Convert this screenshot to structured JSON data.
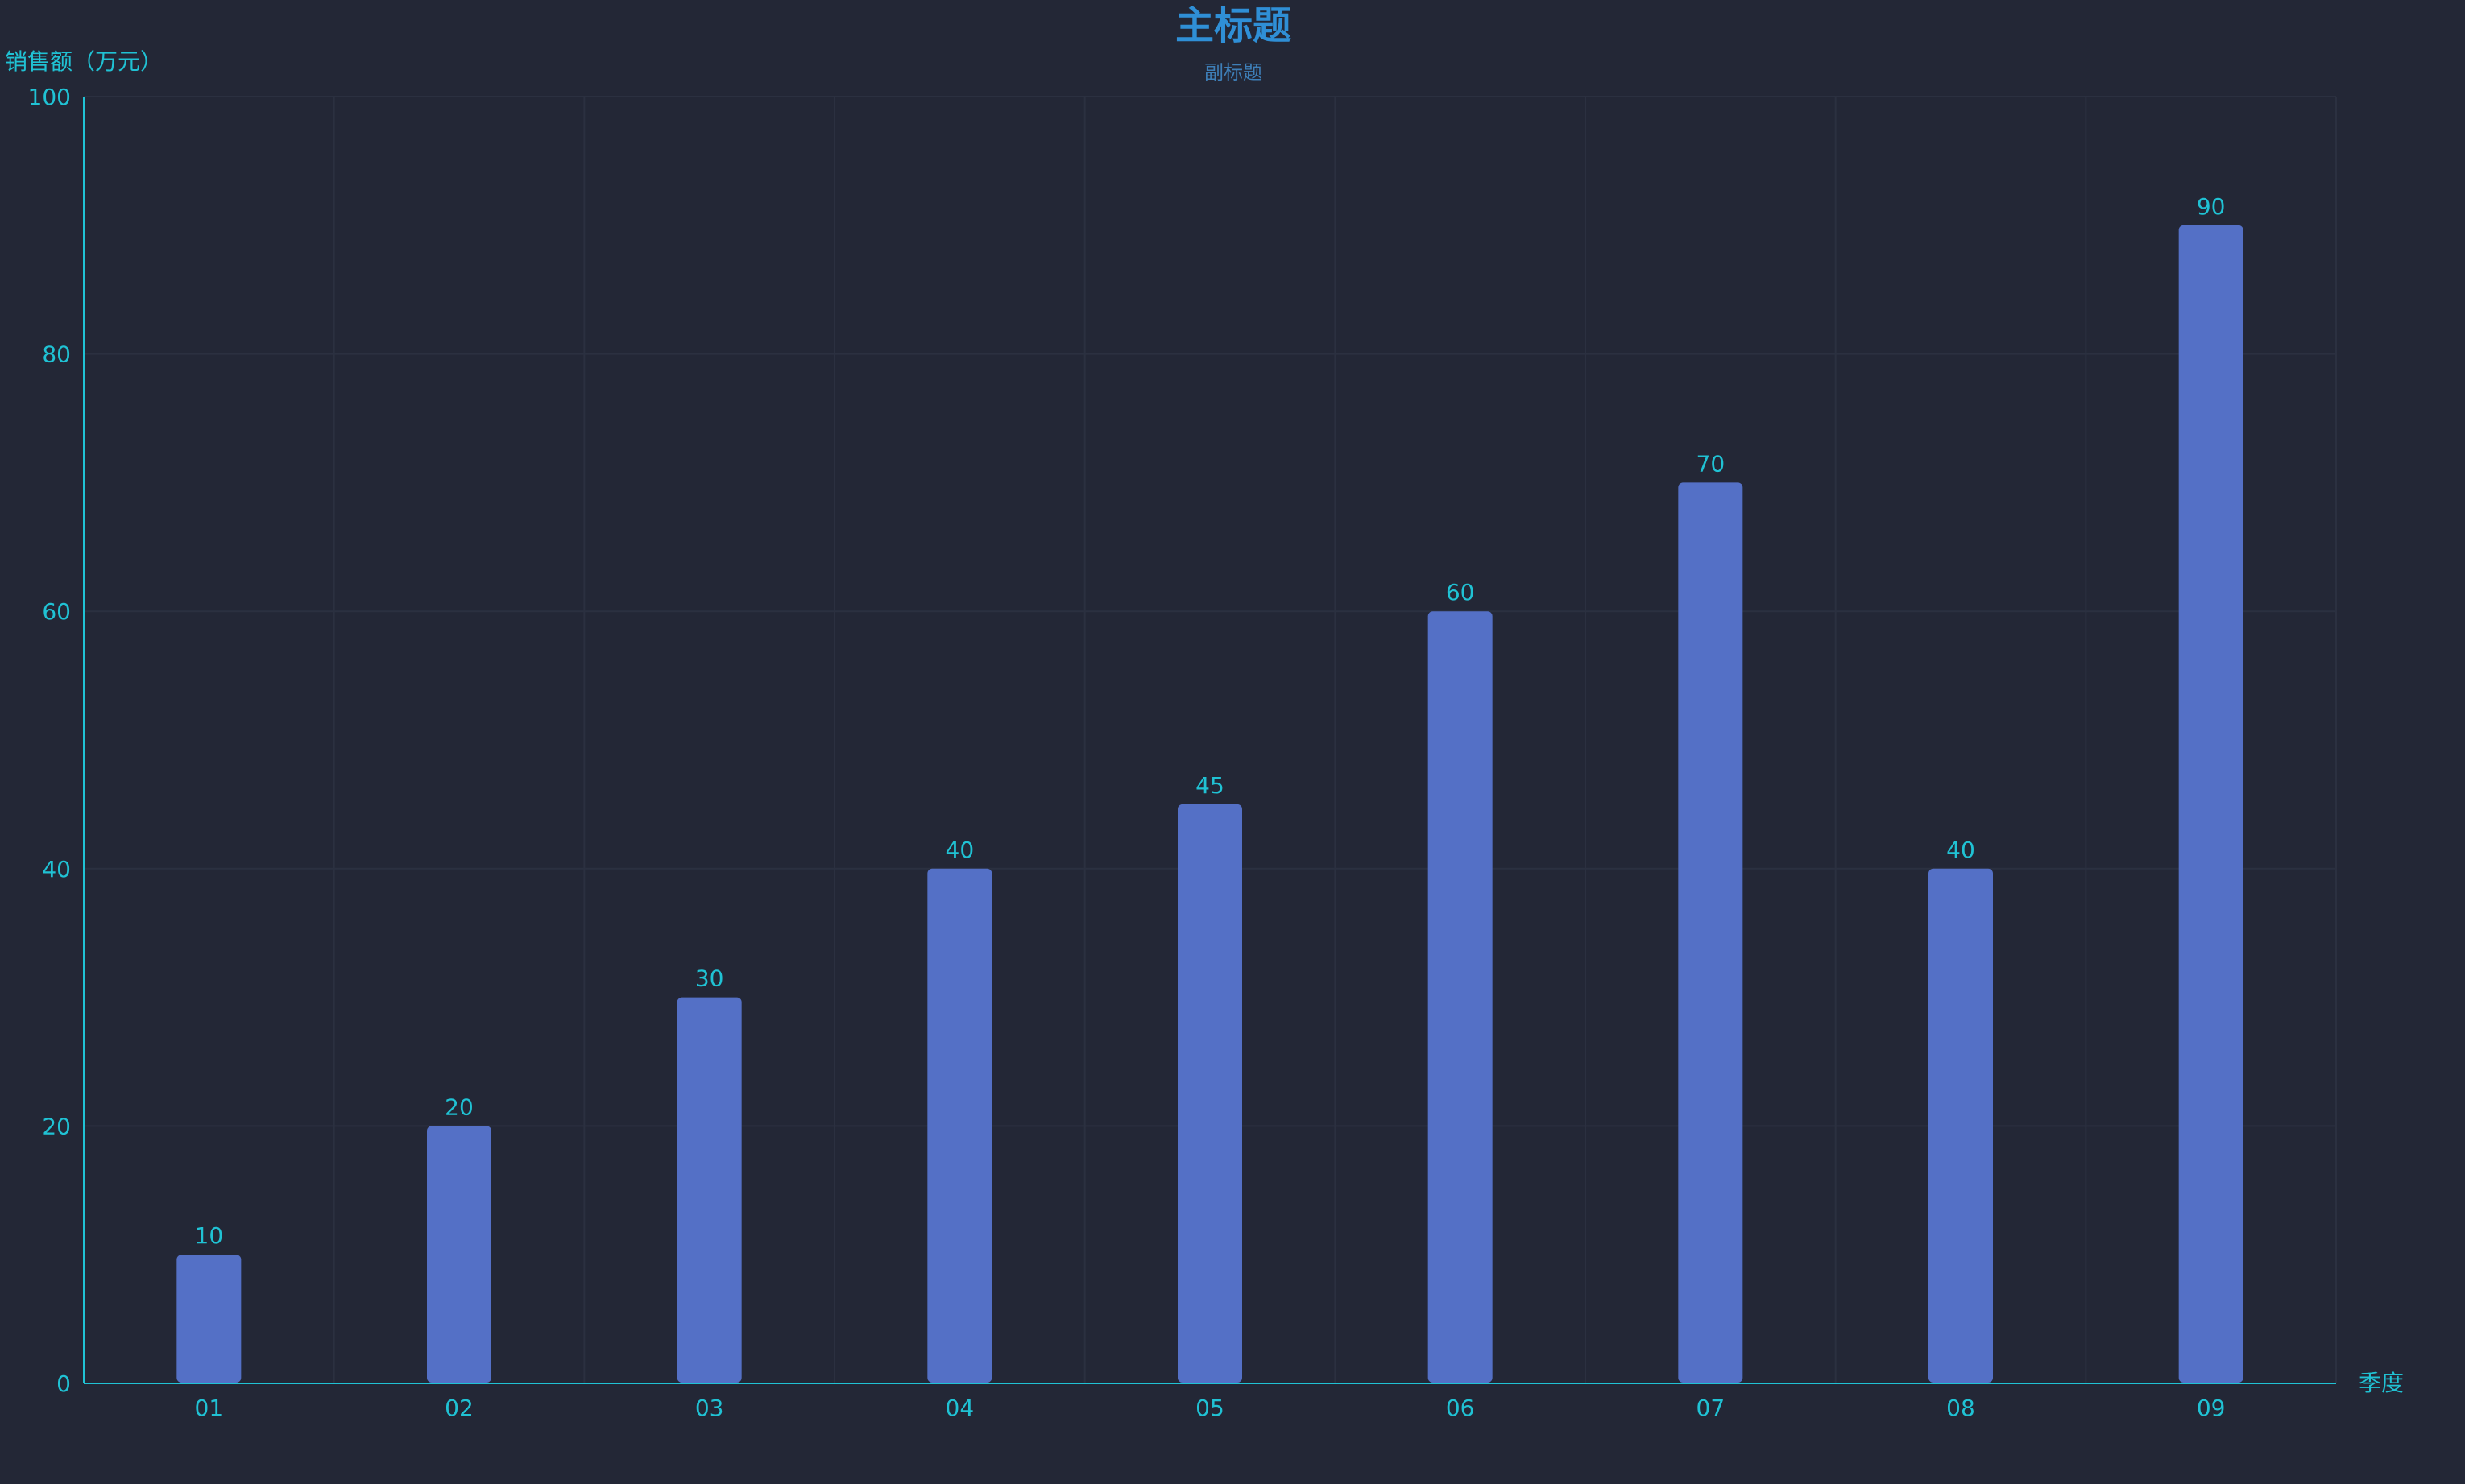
{
  "chart_data": {
    "type": "bar",
    "title": "主标题",
    "subtitle": "副标题",
    "xlabel": "季度",
    "ylabel": "销售额（万元）",
    "categories": [
      "01",
      "02",
      "03",
      "04",
      "05",
      "06",
      "07",
      "08",
      "09"
    ],
    "values": [
      10,
      20,
      30,
      40,
      45,
      60,
      70,
      40,
      90
    ],
    "ylim": [
      0,
      100
    ],
    "yticks": [
      0,
      20,
      40,
      60,
      80,
      100
    ],
    "grid": true,
    "legend": "none",
    "data_labels": true
  },
  "colors": {
    "background": "#232736",
    "bar": "#5470c6",
    "axis": "#20c2d4",
    "text": "#20c2d4",
    "title": "#2f8fd6",
    "subtitle": "#3e7fb8",
    "grid": "#2b3040"
  }
}
